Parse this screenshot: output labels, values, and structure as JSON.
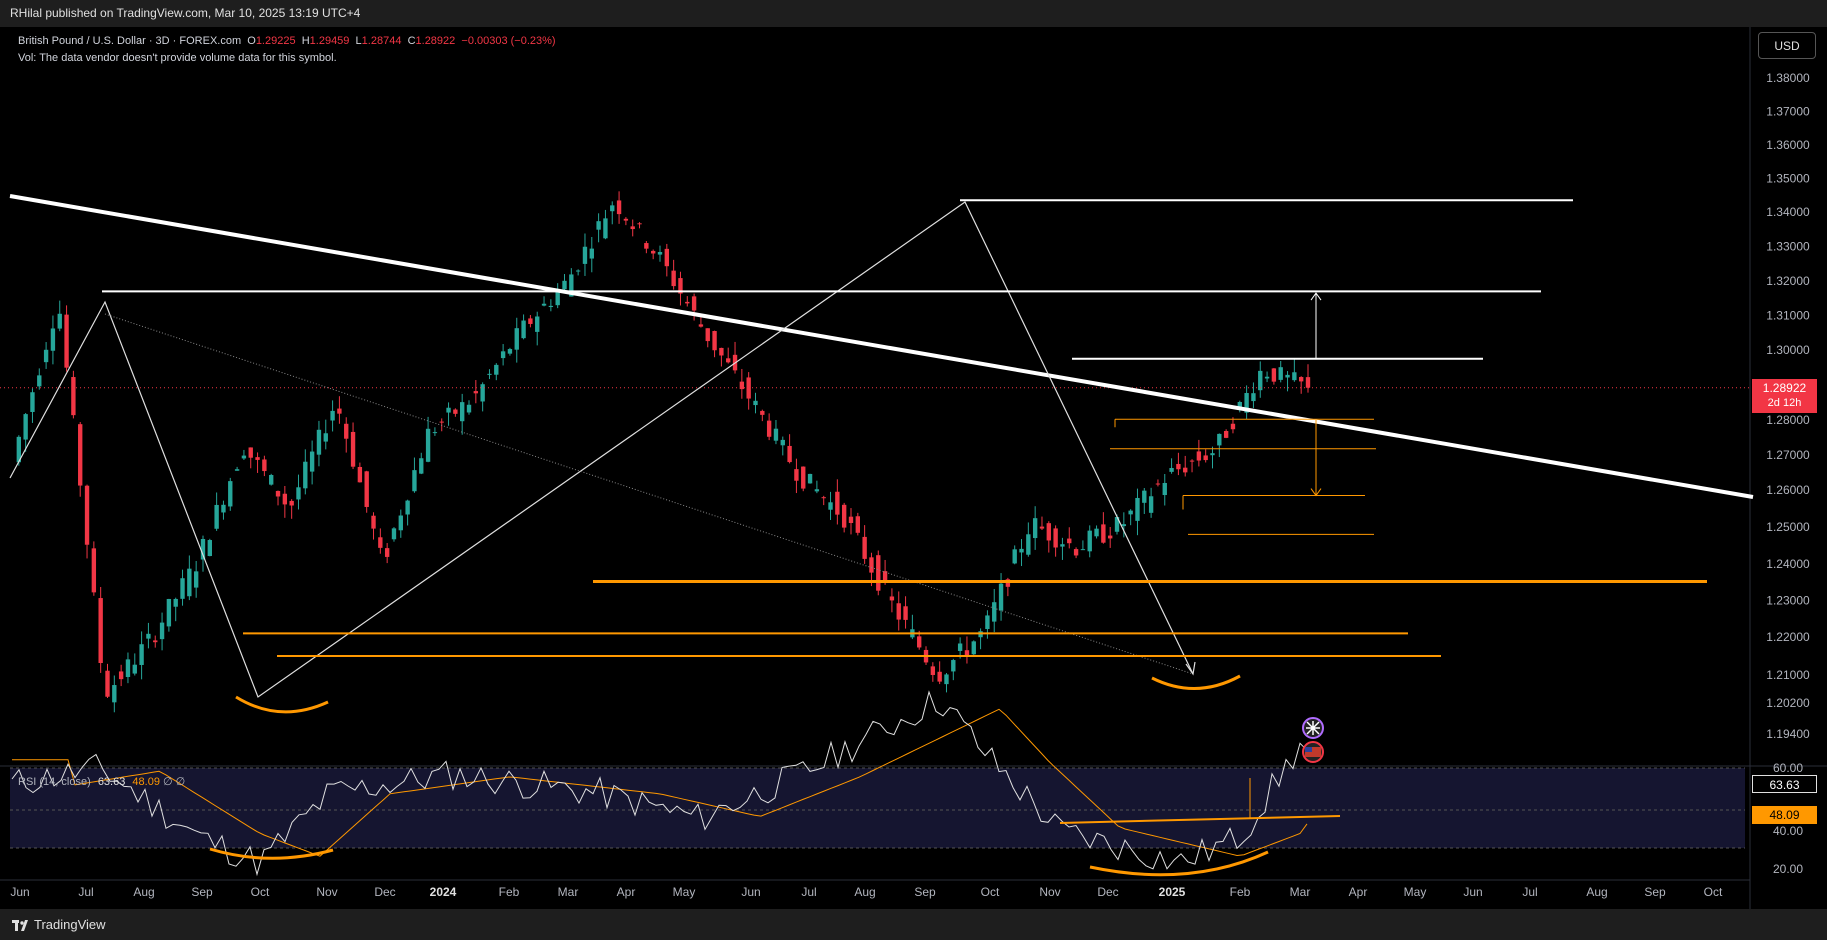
{
  "header": {
    "published": "RHilal published on TradingView.com, Mar 10, 2025 13:19 UTC+4"
  },
  "legend": {
    "symbol": "British Pound / U.S. Dollar · 3D · FOREX.com",
    "open_label": "O",
    "open": "1.29225",
    "high_label": "H",
    "high": "1.29459",
    "low_label": "L",
    "low": "1.28744",
    "close_label": "C",
    "close": "1.28922",
    "change": "−0.00303 (−0.23%)",
    "vol_note": "Vol: The data vendor doesn't provide volume data for this symbol."
  },
  "currency": "USD",
  "last_price": {
    "value": "1.28922",
    "countdown": "2d 12h"
  },
  "rsi_legend": {
    "label": "RSI (14, close)",
    "value": "63.63",
    "ma_value": "48.09",
    "extra": "∅ ∅"
  },
  "rsi_tags": {
    "rsi": "63.63",
    "ma": "48.09"
  },
  "footer": {
    "brand": "TradingView"
  },
  "colors": {
    "up": "#26a69a",
    "down": "#f23645",
    "support": "#ff9800",
    "trendline": "#ffffff"
  },
  "chart_data": {
    "type": "candlestick",
    "timeframe": "3D",
    "price_axis": {
      "ylim": [
        1.185,
        1.39
      ],
      "ticks": [
        "1.38000",
        "1.37000",
        "1.36000",
        "1.35000",
        "1.34000",
        "1.33000",
        "1.32000",
        "1.31000",
        "1.30000",
        "1.29000",
        "1.28000",
        "1.27000",
        "1.26000",
        "1.25000",
        "1.24000",
        "1.23000",
        "1.22000",
        "1.21000",
        "1.20200",
        "1.19400"
      ]
    },
    "time_axis": {
      "labels": [
        "Jun",
        "Jul",
        "Aug",
        "Sep",
        "Oct",
        "Nov",
        "Dec",
        "2024",
        "Feb",
        "Mar",
        "Apr",
        "May",
        "Jun",
        "Jul",
        "Aug",
        "Sep",
        "Oct",
        "Nov",
        "Dec",
        "2025",
        "Feb",
        "Mar",
        "Apr",
        "May",
        "Jun",
        "Jul",
        "Aug",
        "Sep",
        "Oct"
      ]
    },
    "rsi_axis": {
      "ylim": [
        15,
        90
      ],
      "ticks": [
        "60.00",
        "40.00",
        "20.00"
      ]
    },
    "swing_path": [
      1.268,
      1.3143,
      1.2045,
      1.2195,
      1.2405,
      1.2725,
      1.255,
      1.2855,
      1.24,
      1.2765,
      1.2865,
      1.3056,
      1.32,
      1.3435,
      1.3265,
      1.3045,
      1.285,
      1.2645,
      1.2525,
      1.229,
      1.21,
      1.2215,
      1.251,
      1.2445,
      1.251,
      1.2645,
      1.2715,
      1.2945,
      1.2892
    ],
    "support_levels": [
      1.2802,
      1.2718,
      1.2585,
      1.248,
      1.2352,
      1.221,
      1.215
    ],
    "resistance_levels": [
      1.317,
      1.2975,
      1.3435
    ],
    "target_up": [
      1.2975,
      1.3165
    ],
    "target_down": [
      1.28,
      1.2585
    ],
    "last": 1.28922
  }
}
